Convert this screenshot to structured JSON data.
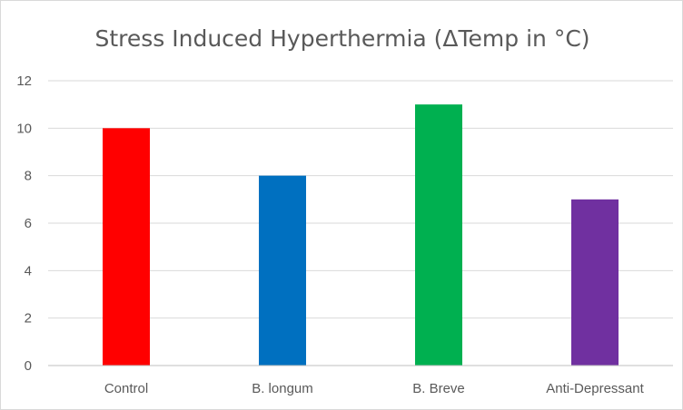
{
  "chart_data": {
    "type": "bar",
    "title": "Stress Induced Hyperthermia (ΔTemp in °C)",
    "xlabel": "",
    "ylabel": "",
    "categories": [
      "Control",
      "B. longum",
      "B. Breve",
      "Anti-Depressant"
    ],
    "values": [
      10,
      8,
      11,
      7
    ],
    "colors": [
      "#ff0000",
      "#0070c0",
      "#00b050",
      "#7030a0"
    ],
    "ylim": [
      0,
      12
    ],
    "yticks": [
      0,
      2,
      4,
      6,
      8,
      10,
      12
    ],
    "grid": true,
    "legend": "none"
  }
}
